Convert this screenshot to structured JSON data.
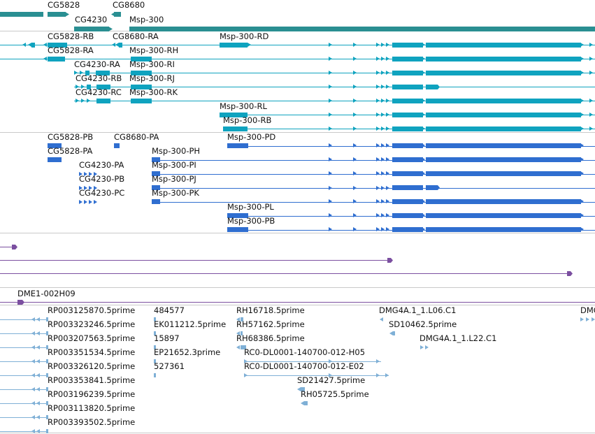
{
  "colors": {
    "gene": "#2a8f92",
    "transcript_r": "#0fa3bf",
    "polypeptide_p": "#2f6ed0",
    "purple_track": "#7b4fa0",
    "est_track": "#7fb0d6",
    "track_separator": "#c9c9c9"
  },
  "tracks": {
    "genes": {
      "features": [
        {
          "name": "CG5828"
        },
        {
          "name": "CG8680"
        },
        {
          "name": "CG4230"
        },
        {
          "name": "Msp-300"
        }
      ]
    },
    "transcripts": {
      "features": [
        {
          "name": "CG5828-RB"
        },
        {
          "name": "CG8680-RA"
        },
        {
          "name": "Msp-300-RD"
        },
        {
          "name": "CG5828-RA"
        },
        {
          "name": "Msp-300-RH"
        },
        {
          "name": "CG4230-RA"
        },
        {
          "name": "Msp-300-RI"
        },
        {
          "name": "CG4230-RB"
        },
        {
          "name": "Msp-300-RJ"
        },
        {
          "name": "CG4230-RC"
        },
        {
          "name": "Msp-300-RK"
        },
        {
          "name": "Msp-300-RL"
        },
        {
          "name": "Msp-300-RB"
        }
      ]
    },
    "polypeptides": {
      "features": [
        {
          "name": "CG5828-PB"
        },
        {
          "name": "CG8680-PA"
        },
        {
          "name": "Msp-300-PD"
        },
        {
          "name": "CG5828-PA"
        },
        {
          "name": "Msp-300-PH"
        },
        {
          "name": "CG4230-PA"
        },
        {
          "name": "Msp-300-PI"
        },
        {
          "name": "CG4230-PB"
        },
        {
          "name": "Msp-300-PJ"
        },
        {
          "name": "CG4230-PC"
        },
        {
          "name": "Msp-300-PK"
        },
        {
          "name": "Msp-300-PL"
        },
        {
          "name": "Msp-300-PB"
        }
      ]
    },
    "purple": {
      "features": [
        {
          "name": "DME1-002H09"
        }
      ]
    },
    "ests": {
      "features": [
        {
          "name": "RP003125870.5prime"
        },
        {
          "name": "484577"
        },
        {
          "name": "RH16718.5prime"
        },
        {
          "name": "DMG4A.1_1.L06.C1"
        },
        {
          "name": "DMG"
        },
        {
          "name": "RP003323246.5prime"
        },
        {
          "name": "EK011212.5prime"
        },
        {
          "name": "RH57162.5prime"
        },
        {
          "name": "SD10462.5prime"
        },
        {
          "name": "RP003207563.5prime"
        },
        {
          "name": "15897"
        },
        {
          "name": "RH68386.5prime"
        },
        {
          "name": "DMG4A.1_1.L22.C1"
        },
        {
          "name": "RP003351534.5prime"
        },
        {
          "name": "EP21652.3prime"
        },
        {
          "name": "RC0-DL0001-140700-012-H05"
        },
        {
          "name": "RP003326120.5prime"
        },
        {
          "name": "527361"
        },
        {
          "name": "RC0-DL0001-140700-012-E02"
        },
        {
          "name": "RP003353841.5prime"
        },
        {
          "name": "SD21427.5prime"
        },
        {
          "name": "RP003196239.5prime"
        },
        {
          "name": "RH05725.5prime"
        },
        {
          "name": "RP003113820.5prime"
        },
        {
          "name": "RP003393502.5prime"
        }
      ]
    }
  }
}
